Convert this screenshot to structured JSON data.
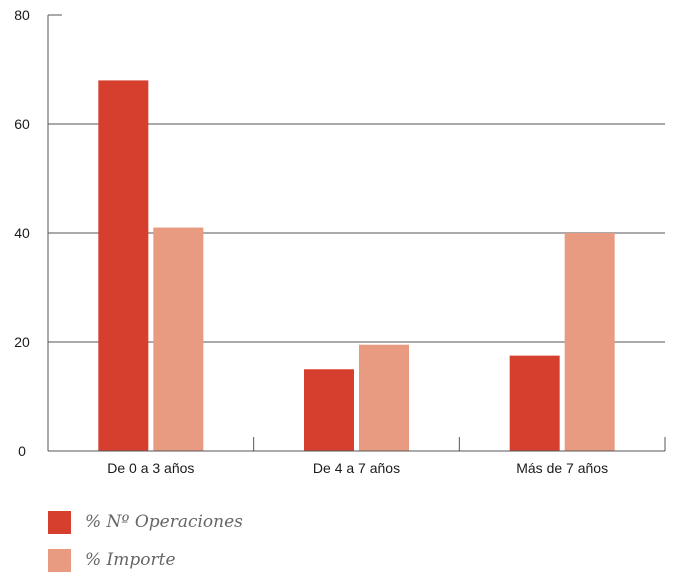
{
  "chart_data": {
    "type": "bar",
    "categories": [
      "De 0 a 3 años",
      "De 4 a 7 años",
      "Más de 7 años"
    ],
    "series": [
      {
        "name": "% Nº Operaciones",
        "values": [
          68,
          15,
          17.5
        ],
        "color": "#d63e2e"
      },
      {
        "name": "% Importe",
        "values": [
          41,
          19.5,
          40
        ],
        "color": "#e89b80"
      }
    ],
    "ylim": [
      0,
      80
    ],
    "yticks": [
      0,
      20,
      40,
      60,
      80
    ],
    "grid": true,
    "legend": "bottom-left"
  },
  "legend": {
    "items": [
      {
        "label": "% Nº Operaciones",
        "color": "#d63e2e"
      },
      {
        "label": "% Importe",
        "color": "#e89b80"
      }
    ]
  }
}
